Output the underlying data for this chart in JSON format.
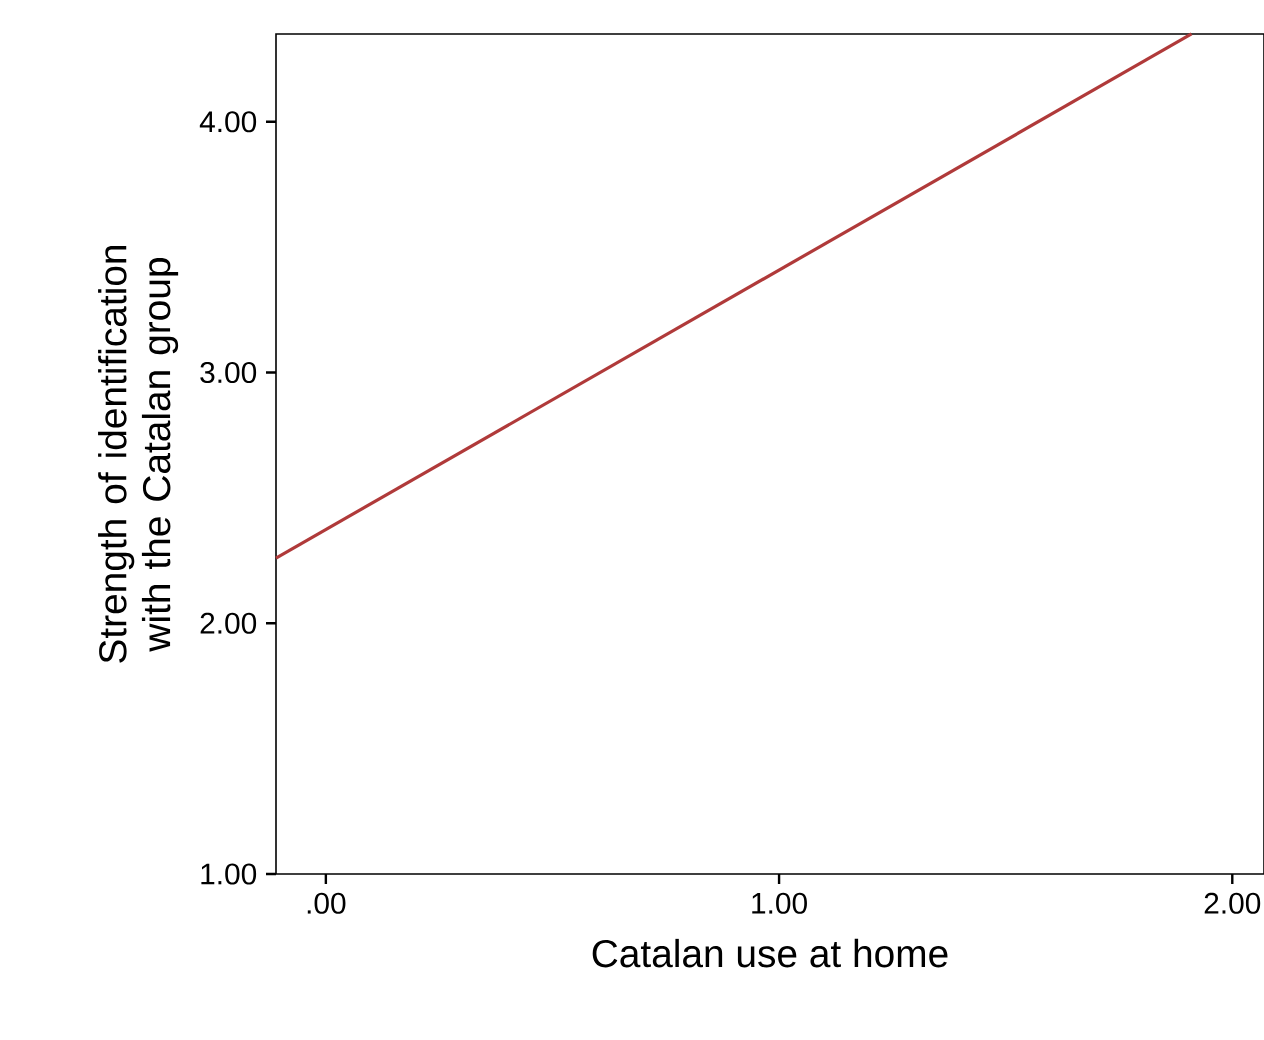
{
  "chart_data": {
    "type": "line",
    "xlabel": "Catalan use at home",
    "ylabel": "Strength of identification with the Catalan group",
    "x": [
      -0.11,
      1.91
    ],
    "series": [
      {
        "color": "#b03a3a",
        "values": [
          2.26,
          4.35
        ]
      }
    ],
    "xlim": [
      -0.11,
      2.07
    ],
    "ylim": [
      1,
      4.35
    ],
    "xticks": [
      {
        "value": 0,
        "label": ".00"
      },
      {
        "value": 1,
        "label": "1.00"
      },
      {
        "value": 2,
        "label": "2.00"
      }
    ],
    "yticks": [
      {
        "value": 1,
        "label": "1.00"
      },
      {
        "value": 2,
        "label": "2.00"
      },
      {
        "value": 3,
        "label": "3.00"
      },
      {
        "value": 4,
        "label": "4.00"
      }
    ],
    "grid": false,
    "marker": "none",
    "line_style": "solid"
  }
}
